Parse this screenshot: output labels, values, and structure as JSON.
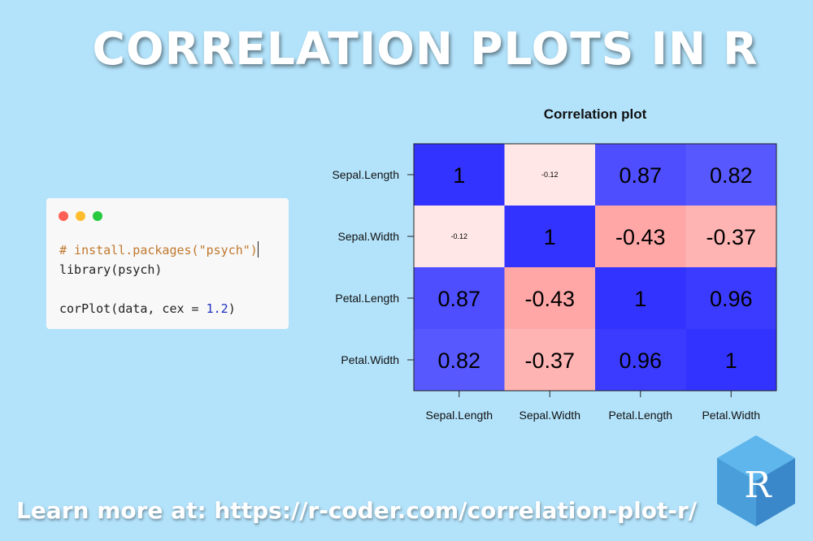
{
  "page_title": "CORRELATION PLOTS IN R",
  "window_controls": {
    "colors": [
      "#ff5f56",
      "#ffbd2e",
      "#27c93f"
    ]
  },
  "code": {
    "comment_line": "# install.packages(\"psych\")",
    "library_line": "library(psych)",
    "call_prefix": "corPlot(data, cex = ",
    "call_number": "1.2",
    "call_suffix": ")"
  },
  "chart_data": {
    "type": "heatmap",
    "title": "Correlation plot",
    "row_labels": [
      "Sepal.Length",
      "Sepal.Width",
      "Petal.Length",
      "Petal.Width"
    ],
    "col_labels": [
      "Sepal.Length",
      "Sepal.Width",
      "Petal.Length",
      "Petal.Width"
    ],
    "values": [
      [
        1,
        -0.12,
        0.87,
        0.82
      ],
      [
        -0.12,
        1,
        -0.43,
        -0.37
      ],
      [
        0.87,
        -0.43,
        1,
        0.96
      ],
      [
        0.82,
        -0.37,
        0.96,
        1
      ]
    ],
    "value_labels": [
      [
        "1",
        "-0.12",
        "0.87",
        "0.82"
      ],
      [
        "-0.12",
        "1",
        "-0.43",
        "-0.37"
      ],
      [
        "0.87",
        "-0.43",
        "1",
        "0.96"
      ],
      [
        "0.82",
        "-0.37",
        "0.96",
        "1"
      ]
    ],
    "color_scale": {
      "low": "#ff0000",
      "mid": "#ffffff",
      "high": "#0000ff"
    },
    "color_range": [
      -1,
      1
    ]
  },
  "footer": {
    "learn_more": "Learn more at: https://r-coder.com/correlation-plot-r/"
  },
  "logo": {
    "letter": "R"
  }
}
